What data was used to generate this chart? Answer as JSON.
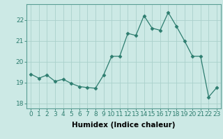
{
  "x": [
    0,
    1,
    2,
    3,
    4,
    5,
    6,
    7,
    8,
    9,
    10,
    11,
    12,
    13,
    14,
    15,
    16,
    17,
    18,
    19,
    20,
    21,
    22,
    23
  ],
  "y": [
    19.4,
    19.2,
    19.35,
    19.05,
    19.15,
    18.95,
    18.8,
    18.75,
    18.72,
    19.35,
    20.25,
    20.25,
    21.35,
    21.25,
    22.2,
    21.6,
    21.5,
    22.35,
    21.7,
    21.0,
    20.25,
    20.25,
    18.3,
    18.75
  ],
  "line_color": "#2d7d6f",
  "marker": "D",
  "marker_size": 2.5,
  "bg_color": "#cce9e5",
  "grid_color": "#aad0cb",
  "xlabel": "Humidex (Indice chaleur)",
  "xlabel_fontsize": 7.5,
  "yticks": [
    18,
    19,
    20,
    21,
    22
  ],
  "xticks": [
    0,
    1,
    2,
    3,
    4,
    5,
    6,
    7,
    8,
    9,
    10,
    11,
    12,
    13,
    14,
    15,
    16,
    17,
    18,
    19,
    20,
    21,
    22,
    23
  ],
  "xlim": [
    -0.5,
    23.5
  ],
  "ylim": [
    17.75,
    22.75
  ],
  "tick_fontsize": 6.5,
  "axis_color": "#2d7d6f",
  "spine_color": "#5a9e94"
}
